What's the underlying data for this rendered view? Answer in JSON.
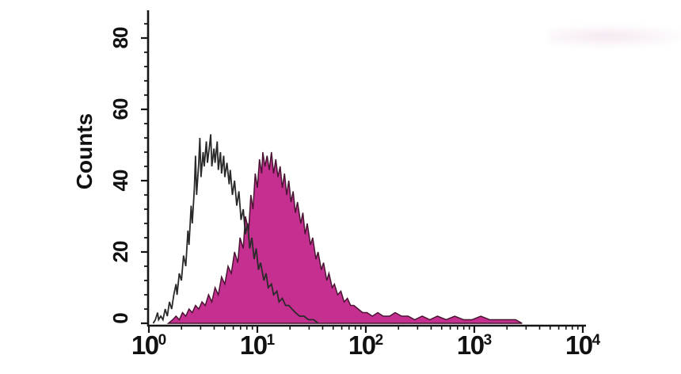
{
  "figure": {
    "background": "#ffffff",
    "description": "Flow cytometry overlay histogram, open control peak left, filled magenta sample peak right"
  },
  "chart_data": {
    "type": "area",
    "subtype": "flow-cytometry-overlay-histogram",
    "title": "",
    "xlabel": "",
    "ylabel": "Counts",
    "x_scale": "log10",
    "xlim_log": [
      0,
      4
    ],
    "ylim": [
      0,
      88
    ],
    "grid": false,
    "legend": "none",
    "x_ticks": [
      {
        "base": "10",
        "exp": "0",
        "log": 0
      },
      {
        "base": "10",
        "exp": "1",
        "log": 1
      },
      {
        "base": "10",
        "exp": "2",
        "log": 2
      },
      {
        "base": "10",
        "exp": "3",
        "log": 3
      },
      {
        "base": "10",
        "exp": "4",
        "log": 4
      }
    ],
    "y_ticks": [
      0,
      20,
      40,
      60,
      80
    ],
    "y_minor_step": 4,
    "colors": {
      "axis": "#151515",
      "tick_label": "#111111",
      "open_outline": "#2a2a2a",
      "filled_fill": "#c53090",
      "filled_outline": "#4a1433"
    },
    "series": [
      {
        "name": "filled-sample",
        "style": "filled",
        "stroke": "#4a1433",
        "fill": "#c53090",
        "peak_counts": 48,
        "peak_log_x": 1.1,
        "points": [
          [
            0.18,
            0
          ],
          [
            0.22,
            1
          ],
          [
            0.25,
            2
          ],
          [
            0.28,
            1
          ],
          [
            0.31,
            3
          ],
          [
            0.34,
            2
          ],
          [
            0.37,
            4
          ],
          [
            0.4,
            3
          ],
          [
            0.43,
            5
          ],
          [
            0.46,
            4
          ],
          [
            0.49,
            6
          ],
          [
            0.52,
            5
          ],
          [
            0.55,
            8
          ],
          [
            0.58,
            6
          ],
          [
            0.61,
            10
          ],
          [
            0.64,
            8
          ],
          [
            0.67,
            13
          ],
          [
            0.7,
            11
          ],
          [
            0.73,
            16
          ],
          [
            0.76,
            14
          ],
          [
            0.79,
            20
          ],
          [
            0.82,
            17
          ],
          [
            0.84,
            24
          ],
          [
            0.87,
            21
          ],
          [
            0.89,
            30
          ],
          [
            0.92,
            26
          ],
          [
            0.94,
            36
          ],
          [
            0.96,
            32
          ],
          [
            0.98,
            42
          ],
          [
            1.0,
            38
          ],
          [
            1.02,
            46
          ],
          [
            1.04,
            42
          ],
          [
            1.05,
            48
          ],
          [
            1.07,
            44
          ],
          [
            1.09,
            47
          ],
          [
            1.11,
            43
          ],
          [
            1.13,
            48
          ],
          [
            1.15,
            42
          ],
          [
            1.17,
            46
          ],
          [
            1.19,
            41
          ],
          [
            1.21,
            44
          ],
          [
            1.23,
            38
          ],
          [
            1.25,
            42
          ],
          [
            1.27,
            36
          ],
          [
            1.29,
            40
          ],
          [
            1.31,
            34
          ],
          [
            1.33,
            37
          ],
          [
            1.35,
            31
          ],
          [
            1.37,
            34
          ],
          [
            1.4,
            28
          ],
          [
            1.42,
            31
          ],
          [
            1.44,
            25
          ],
          [
            1.46,
            28
          ],
          [
            1.49,
            22
          ],
          [
            1.51,
            24
          ],
          [
            1.54,
            18
          ],
          [
            1.56,
            20
          ],
          [
            1.59,
            15
          ],
          [
            1.61,
            17
          ],
          [
            1.64,
            12
          ],
          [
            1.66,
            14
          ],
          [
            1.69,
            10
          ],
          [
            1.71,
            11
          ],
          [
            1.74,
            8
          ],
          [
            1.77,
            9
          ],
          [
            1.8,
            6
          ],
          [
            1.83,
            7
          ],
          [
            1.86,
            5
          ],
          [
            1.89,
            5
          ],
          [
            1.93,
            4
          ],
          [
            1.97,
            3
          ],
          [
            2.01,
            3
          ],
          [
            2.06,
            2
          ],
          [
            2.11,
            3
          ],
          [
            2.16,
            2
          ],
          [
            2.22,
            2
          ],
          [
            2.27,
            3
          ],
          [
            2.33,
            2
          ],
          [
            2.39,
            2
          ],
          [
            2.45,
            1
          ],
          [
            2.52,
            2
          ],
          [
            2.59,
            1
          ],
          [
            2.66,
            2
          ],
          [
            2.74,
            1
          ],
          [
            2.82,
            2
          ],
          [
            2.9,
            1
          ],
          [
            2.98,
            1
          ],
          [
            3.06,
            2
          ],
          [
            3.14,
            1
          ],
          [
            3.22,
            1
          ],
          [
            3.3,
            1
          ],
          [
            3.38,
            1
          ],
          [
            3.44,
            0
          ]
        ]
      },
      {
        "name": "open-control",
        "style": "open",
        "stroke": "#2a2a2a",
        "fill": "none",
        "peak_counts": 53,
        "peak_log_x": 0.6,
        "points": [
          [
            0.04,
            0
          ],
          [
            0.06,
            1
          ],
          [
            0.08,
            3
          ],
          [
            0.09,
            1
          ],
          [
            0.11,
            2
          ],
          [
            0.13,
            1
          ],
          [
            0.15,
            4
          ],
          [
            0.17,
            2
          ],
          [
            0.19,
            6
          ],
          [
            0.21,
            4
          ],
          [
            0.23,
            8
          ],
          [
            0.25,
            11
          ],
          [
            0.26,
            8
          ],
          [
            0.28,
            14
          ],
          [
            0.3,
            12
          ],
          [
            0.32,
            19
          ],
          [
            0.34,
            16
          ],
          [
            0.36,
            26
          ],
          [
            0.37,
            22
          ],
          [
            0.39,
            33
          ],
          [
            0.4,
            28
          ],
          [
            0.42,
            38
          ],
          [
            0.43,
            47
          ],
          [
            0.44,
            36
          ],
          [
            0.46,
            45
          ],
          [
            0.47,
            52
          ],
          [
            0.48,
            41
          ],
          [
            0.5,
            48
          ],
          [
            0.51,
            44
          ],
          [
            0.53,
            51
          ],
          [
            0.54,
            45
          ],
          [
            0.56,
            50
          ],
          [
            0.57,
            53
          ],
          [
            0.58,
            44
          ],
          [
            0.6,
            49
          ],
          [
            0.61,
            45
          ],
          [
            0.63,
            51
          ],
          [
            0.64,
            43
          ],
          [
            0.66,
            48
          ],
          [
            0.67,
            42
          ],
          [
            0.69,
            47
          ],
          [
            0.7,
            41
          ],
          [
            0.72,
            45
          ],
          [
            0.74,
            39
          ],
          [
            0.75,
            43
          ],
          [
            0.77,
            36
          ],
          [
            0.79,
            40
          ],
          [
            0.81,
            33
          ],
          [
            0.83,
            37
          ],
          [
            0.85,
            29
          ],
          [
            0.87,
            32
          ],
          [
            0.89,
            25
          ],
          [
            0.91,
            28
          ],
          [
            0.93,
            21
          ],
          [
            0.95,
            24
          ],
          [
            0.97,
            18
          ],
          [
            0.99,
            21
          ],
          [
            1.01,
            15
          ],
          [
            1.03,
            17
          ],
          [
            1.06,
            12
          ],
          [
            1.08,
            14
          ],
          [
            1.1,
            10
          ],
          [
            1.13,
            11
          ],
          [
            1.15,
            8
          ],
          [
            1.18,
            9
          ],
          [
            1.2,
            6
          ],
          [
            1.23,
            7
          ],
          [
            1.26,
            5
          ],
          [
            1.29,
            5
          ],
          [
            1.32,
            4
          ],
          [
            1.35,
            3
          ],
          [
            1.39,
            2
          ],
          [
            1.43,
            2
          ],
          [
            1.47,
            1
          ],
          [
            1.52,
            1
          ],
          [
            1.56,
            0
          ]
        ]
      }
    ]
  }
}
